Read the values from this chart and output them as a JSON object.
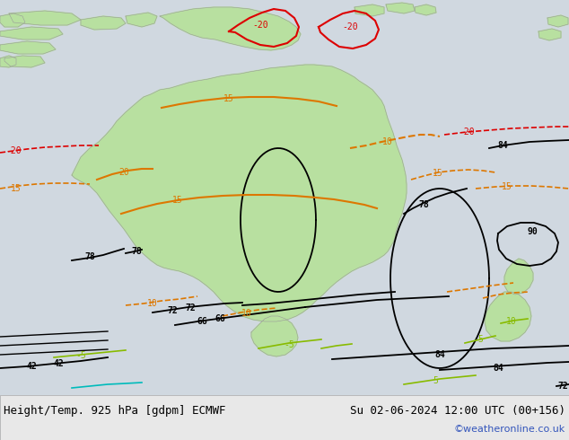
{
  "title_left": "Height/Temp. 925 hPa [gdpm] ECMWF",
  "title_right": "Su 02-06-2024 12:00 UTC (00+156)",
  "copyright": "©weatheronline.co.uk",
  "bg_color": "#d0d0d0",
  "map_bg_color": "#d8d8d8",
  "ocean_color": "#d0d8e0",
  "land_color": "#b8e0a0",
  "land_border": "#999999",
  "bottom_bar_color": "#e8e8e8",
  "title_fontsize": 9,
  "copyright_color": "#3355bb",
  "copyright_fontsize": 8,
  "black": "#000000",
  "red": "#dd0000",
  "orange": "#dd7700",
  "yellow_green": "#88bb00",
  "cyan": "#00bbbb",
  "figsize": [
    6.34,
    4.9
  ],
  "dpi": 100
}
